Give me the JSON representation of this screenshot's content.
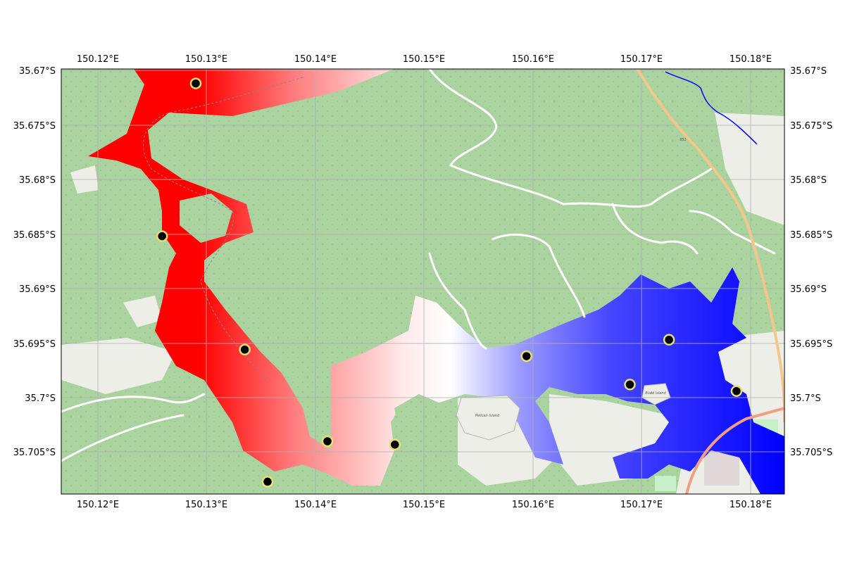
{
  "map": {
    "axes": {
      "x_ticks": [
        "150.12°E",
        "150.13°E",
        "150.14°E",
        "150.15°E",
        "150.16°E",
        "150.17°E",
        "150.18°E"
      ],
      "y_ticks": [
        "35.67°S",
        "35.675°S",
        "35.68°S",
        "35.685°S",
        "35.69°S",
        "35.695°S",
        "35.7°S",
        "35.705°S"
      ]
    },
    "basemap_labels": {
      "pelican_island": "Pelican Island",
      "budd_island": "Budd Island",
      "road_852": "852"
    },
    "stations": [
      {
        "lon": 150.129,
        "lat": -35.6712,
        "z": 0.95
      },
      {
        "lon": 150.1259,
        "lat": -35.6852,
        "z": 0.55
      },
      {
        "lon": 150.1335,
        "lat": -35.6956,
        "z": 0.25
      },
      {
        "lon": 150.1411,
        "lat": -35.704,
        "z": 0.1
      },
      {
        "lon": 150.1473,
        "lat": -35.7043,
        "z": 0.45
      },
      {
        "lon": 150.1356,
        "lat": -35.7077,
        "z": -0.05
      },
      {
        "lon": 150.1594,
        "lat": -35.6962,
        "z": -0.6
      },
      {
        "lon": 150.1689,
        "lat": -35.6988,
        "z": -0.75
      },
      {
        "lon": 150.1725,
        "lat": -35.6947,
        "z": -0.8
      },
      {
        "lon": 150.1787,
        "lat": -35.6994,
        "z": -0.85
      }
    ],
    "colors": {
      "land": "#aad3a0",
      "urban": "#eeeee8",
      "water_high": "#ff0000",
      "water_mid": "#ffffff",
      "water_low": "#0000ff",
      "marker_fill": "#000000",
      "marker_edge": "#e8e070",
      "grid": "#b0b0b0",
      "road": "#ffffff",
      "highway": "#f5c68c"
    }
  }
}
